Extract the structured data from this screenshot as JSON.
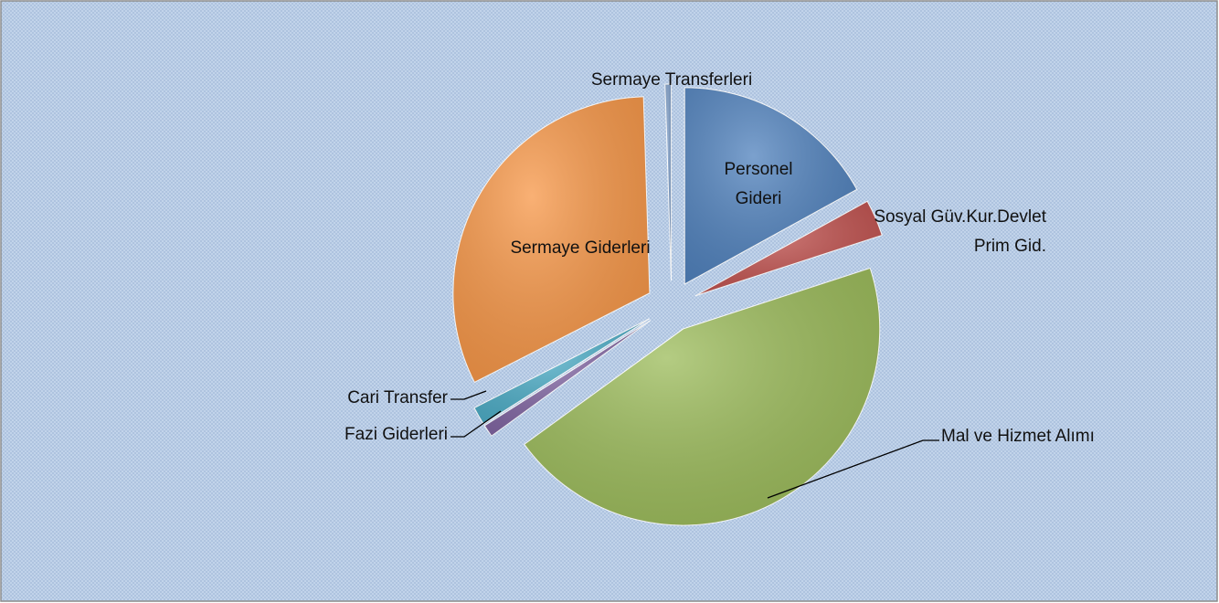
{
  "chart_data": {
    "type": "pie",
    "categories": [
      "Personel Gideri",
      "Sosyal Güv.Kur.Devlet Prim Gid.",
      "Mal ve Hizmet Alımı",
      "Fazi Giderleri",
      "Cari Transfer",
      "Sermaye Giderleri",
      "Sermaye Transferleri"
    ],
    "values": [
      17,
      3,
      45,
      1,
      1.5,
      32,
      0.5
    ],
    "colors": [
      "#4f81bd",
      "#c0504d",
      "#9bbb59",
      "#8064a2",
      "#4bacc6",
      "#f79646",
      "#7f9fc9"
    ],
    "exploded": true
  }
}
